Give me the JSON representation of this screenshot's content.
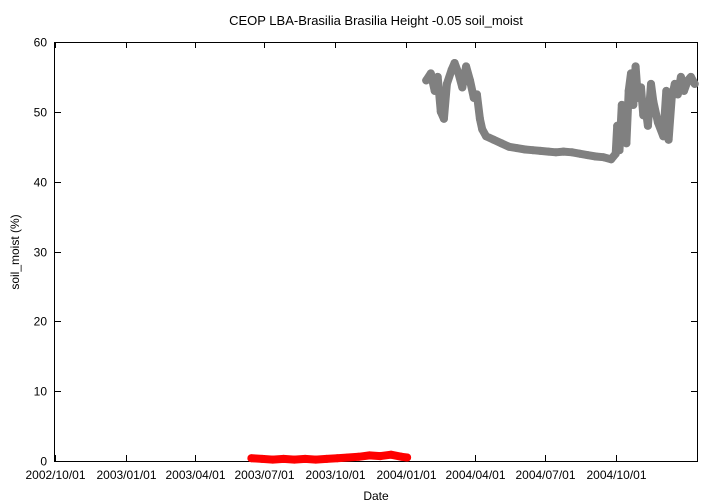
{
  "chart_data": {
    "type": "scatter",
    "title": "CEOP LBA-Brasilia Brasilia Height -0.05 soil_moist",
    "xlabel": "Date",
    "ylabel": "soil_moist (%)",
    "ylim": [
      0,
      60
    ],
    "yticks": [
      0,
      10,
      20,
      30,
      40,
      50,
      60
    ],
    "xlim": [
      "2002/10/01",
      "2005/01/15"
    ],
    "xticks": [
      "2002/10/01",
      "2003/01/01",
      "2003/04/01",
      "2003/07/01",
      "2003/10/01",
      "2004/01/01",
      "2004/04/01",
      "2004/07/01",
      "2004/10/01"
    ],
    "grid": false,
    "legend": "none",
    "series": [
      {
        "color": "#ff0000",
        "points": [
          [
            "2003/06/14",
            0.4
          ],
          [
            "2003/06/28",
            0.3
          ],
          [
            "2003/07/12",
            0.2
          ],
          [
            "2003/07/26",
            0.3
          ],
          [
            "2003/08/09",
            0.2
          ],
          [
            "2003/08/23",
            0.3
          ],
          [
            "2003/09/06",
            0.2
          ],
          [
            "2003/09/20",
            0.3
          ],
          [
            "2003/10/04",
            0.4
          ],
          [
            "2003/10/18",
            0.5
          ],
          [
            "2003/11/01",
            0.6
          ],
          [
            "2003/11/15",
            0.8
          ],
          [
            "2003/11/29",
            0.7
          ],
          [
            "2003/12/13",
            0.9
          ],
          [
            "2003/12/27",
            0.6
          ],
          [
            "2004/01/03",
            0.5
          ]
        ]
      },
      {
        "color": "#808080",
        "points": [
          [
            "2004/01/28",
            54.5
          ],
          [
            "2004/02/03",
            55.5
          ],
          [
            "2004/02/08",
            53.0
          ],
          [
            "2004/02/12",
            55.0
          ],
          [
            "2004/02/16",
            50.0
          ],
          [
            "2004/02/20",
            49.0
          ],
          [
            "2004/02/24",
            54.0
          ],
          [
            "2004/03/01",
            56.0
          ],
          [
            "2004/03/05",
            57.0
          ],
          [
            "2004/03/10",
            55.5
          ],
          [
            "2004/03/15",
            53.5
          ],
          [
            "2004/03/20",
            56.5
          ],
          [
            "2004/03/25",
            54.5
          ],
          [
            "2004/03/30",
            52.0
          ],
          [
            "2004/04/03",
            52.5
          ],
          [
            "2004/04/07",
            49.0
          ],
          [
            "2004/04/10",
            47.5
          ],
          [
            "2004/04/15",
            46.5
          ],
          [
            "2004/04/25",
            46.0
          ],
          [
            "2004/05/05",
            45.5
          ],
          [
            "2004/05/15",
            45.0
          ],
          [
            "2004/05/25",
            44.8
          ],
          [
            "2004/06/05",
            44.6
          ],
          [
            "2004/06/15",
            44.5
          ],
          [
            "2004/06/25",
            44.4
          ],
          [
            "2004/07/05",
            44.3
          ],
          [
            "2004/07/15",
            44.2
          ],
          [
            "2004/07/25",
            44.3
          ],
          [
            "2004/08/05",
            44.2
          ],
          [
            "2004/08/15",
            44.0
          ],
          [
            "2004/08/25",
            43.8
          ],
          [
            "2004/09/05",
            43.6
          ],
          [
            "2004/09/15",
            43.5
          ],
          [
            "2004/09/25",
            43.2
          ],
          [
            "2004/10/01",
            44.0
          ],
          [
            "2004/10/03",
            48.0
          ],
          [
            "2004/10/06",
            44.5
          ],
          [
            "2004/10/09",
            51.0
          ],
          [
            "2004/10/12",
            50.0
          ],
          [
            "2004/10/15",
            45.5
          ],
          [
            "2004/10/18",
            53.0
          ],
          [
            "2004/10/21",
            55.5
          ],
          [
            "2004/10/24",
            51.0
          ],
          [
            "2004/10/27",
            56.5
          ],
          [
            "2004/10/30",
            52.0
          ],
          [
            "2004/11/03",
            53.5
          ],
          [
            "2004/11/06",
            49.5
          ],
          [
            "2004/11/09",
            50.5
          ],
          [
            "2004/11/12",
            48.0
          ],
          [
            "2004/11/16",
            54.0
          ],
          [
            "2004/11/19",
            51.5
          ],
          [
            "2004/11/25",
            48.5
          ],
          [
            "2004/12/02",
            46.5
          ],
          [
            "2004/12/06",
            53.0
          ],
          [
            "2004/12/09",
            46.0
          ],
          [
            "2004/12/13",
            52.0
          ],
          [
            "2004/12/17",
            54.0
          ],
          [
            "2004/12/21",
            52.5
          ],
          [
            "2004/12/25",
            55.0
          ],
          [
            "2004/12/29",
            53.0
          ],
          [
            "2005/01/03",
            54.5
          ],
          [
            "2005/01/07",
            55.0
          ],
          [
            "2005/01/12",
            54.0
          ]
        ]
      }
    ]
  }
}
